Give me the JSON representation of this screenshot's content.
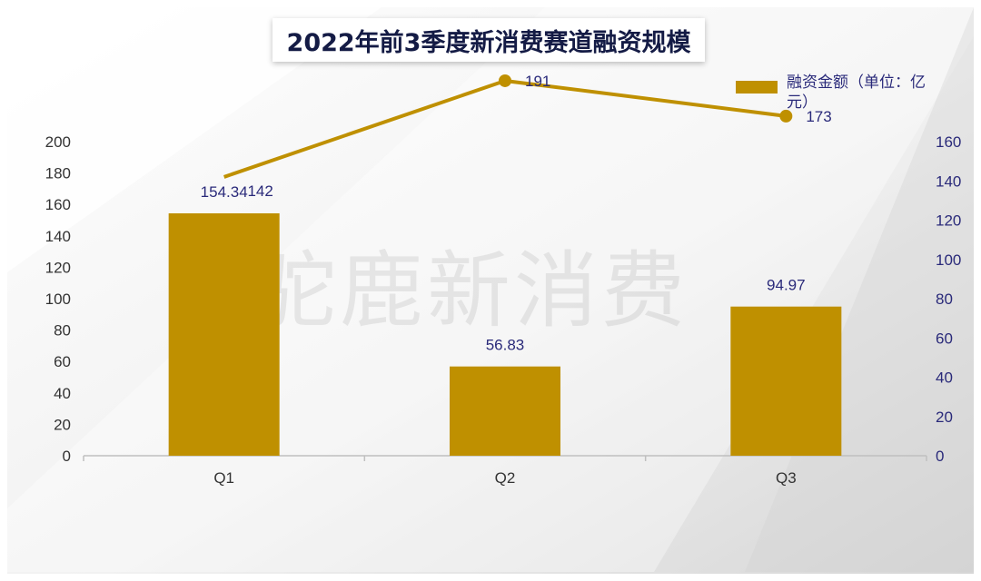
{
  "page": {
    "watermark": "驼鹿新消费"
  },
  "chart_data": {
    "type": "bar",
    "title": "2022年前3季度新消费赛道融资规模",
    "categories": [
      "Q1",
      "Q2",
      "Q3"
    ],
    "series": [
      {
        "name": "融资金额（单位：亿元）",
        "type": "bar",
        "axis": "left",
        "values": [
          154.34,
          56.83,
          94.97
        ],
        "data_labels": [
          "154.34",
          "56.83",
          "94.97"
        ],
        "color": "#bf9000"
      },
      {
        "type": "line",
        "axis": "right",
        "values": [
          142,
          191,
          173
        ],
        "data_labels": [
          "142",
          "191",
          "173"
        ],
        "color": "#bf9000"
      }
    ],
    "y_left": {
      "min": 0,
      "max": 200,
      "ticks": [
        "0",
        "20",
        "40",
        "60",
        "80",
        "100",
        "120",
        "140",
        "160",
        "180",
        "200"
      ],
      "color": "#333333"
    },
    "y_right": {
      "min": 0,
      "max": 160,
      "ticks": [
        "0",
        "20",
        "40",
        "60",
        "80",
        "100",
        "120",
        "140",
        "160"
      ],
      "color": "#2a2a7a"
    },
    "legend": {
      "position": "top-right",
      "label": "融资金额（单位：亿元）"
    },
    "grid": false,
    "label_color": "#2a2a7a",
    "axis_color": "#bfbfbf"
  }
}
